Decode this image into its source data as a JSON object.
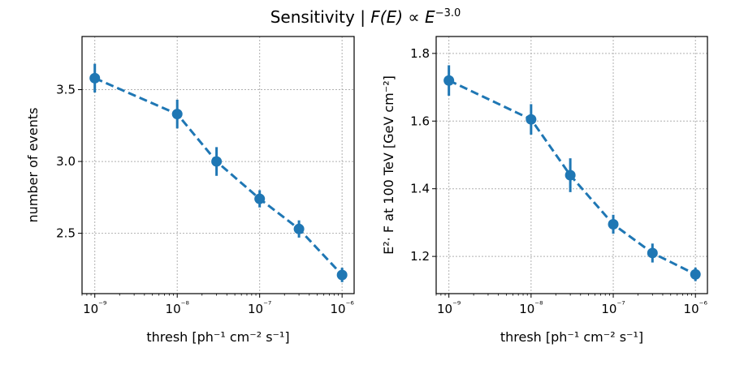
{
  "figure": {
    "title": "Sensitivity | F(E) ∝ E^{−3.0}"
  },
  "chart_data": [
    {
      "type": "line",
      "xscale": "log",
      "x": [
        1e-09,
        1e-08,
        3e-08,
        1e-07,
        3e-07,
        1e-06
      ],
      "xlim": [
        7e-10,
        1.4e-06
      ],
      "ylim": [
        2.08,
        3.87
      ],
      "yticks": [
        2.5,
        3.0,
        3.5
      ],
      "ytick_labels": [
        "2.5",
        "3.0",
        "3.5"
      ],
      "xlabel": "thresh    [ph⁻¹ cm⁻² s⁻¹]",
      "ylabel": "number of events",
      "grid": true,
      "series": [
        {
          "color": "#1f77b4",
          "values": [
            3.58,
            3.33,
            3.0,
            2.74,
            2.53,
            2.21
          ],
          "yerr": [
            0.1,
            0.1,
            0.1,
            0.06,
            0.06,
            0.05
          ]
        }
      ]
    },
    {
      "type": "line",
      "xscale": "log",
      "x": [
        1e-09,
        1e-08,
        3e-08,
        1e-07,
        3e-07,
        1e-06
      ],
      "xlim": [
        7e-10,
        1.4e-06
      ],
      "ylim": [
        1.09,
        1.85
      ],
      "yticks": [
        1.2,
        1.4,
        1.6,
        1.8
      ],
      "ytick_labels": [
        "1.2",
        "1.4",
        "1.6",
        "1.8"
      ],
      "xlabel": "thresh    [ph⁻¹ cm⁻² s⁻¹]",
      "ylabel": "E²· F at 100 TeV    [GeV cm⁻²]",
      "grid": true,
      "series": [
        {
          "color": "#1f77b4",
          "values": [
            1.72,
            1.605,
            1.44,
            1.295,
            1.21,
            1.147
          ],
          "yerr": [
            0.045,
            0.045,
            0.05,
            0.028,
            0.028,
            0.02
          ]
        }
      ]
    }
  ],
  "xtick_labels": [
    "10⁻⁹",
    "10⁻⁸",
    "10⁻⁷",
    "10⁻⁶"
  ]
}
